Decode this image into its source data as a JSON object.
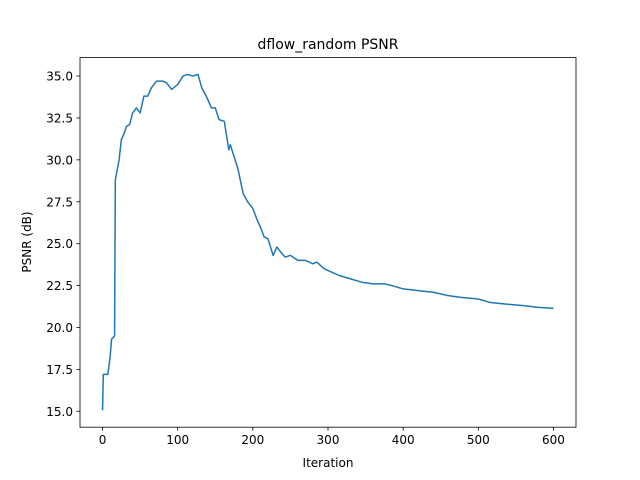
{
  "chart_data": {
    "type": "line",
    "title": "dflow_random PSNR",
    "x_label": "Iteration",
    "y_label": "PSNR (dB)",
    "x": [
      0,
      1,
      7,
      10,
      12,
      16,
      17,
      22,
      25,
      28,
      32,
      36,
      40,
      45,
      50,
      55,
      60,
      65,
      72,
      80,
      85,
      92,
      100,
      107,
      113,
      120,
      127,
      132,
      138,
      145,
      150,
      155,
      162,
      168,
      170,
      175,
      180,
      187,
      193,
      200,
      205,
      210,
      215,
      220,
      227,
      232,
      237,
      243,
      250,
      260,
      270,
      280,
      285,
      295,
      305,
      315,
      330,
      345,
      360,
      375,
      385,
      400,
      420,
      440,
      460,
      475,
      500,
      515,
      535,
      560,
      580,
      600
    ],
    "series": [
      {
        "name": "PSNR",
        "color": "#1f77b4",
        "values": [
          15.06,
          17.2,
          17.2,
          18.2,
          19.3,
          19.5,
          28.8,
          30.0,
          31.2,
          31.5,
          32.0,
          32.1,
          32.8,
          33.1,
          32.8,
          33.8,
          33.8,
          34.3,
          34.7,
          34.7,
          34.6,
          34.2,
          34.5,
          35.0,
          35.1,
          35.0,
          35.1,
          34.3,
          33.8,
          33.1,
          33.1,
          32.4,
          32.3,
          30.6,
          30.9,
          30.2,
          29.5,
          28.0,
          27.5,
          27.1,
          26.5,
          26.0,
          25.4,
          25.3,
          24.3,
          24.8,
          24.5,
          24.2,
          24.3,
          24.0,
          24.0,
          23.8,
          23.9,
          23.5,
          23.3,
          23.1,
          22.9,
          22.7,
          22.6,
          22.6,
          22.5,
          22.3,
          22.2,
          22.1,
          21.9,
          21.8,
          21.7,
          21.5,
          21.4,
          21.3,
          21.2,
          21.15
        ]
      }
    ],
    "xlim": [
      -30,
      630
    ],
    "ylim": [
      14.05,
      36.1
    ],
    "xticks": [
      0,
      100,
      200,
      300,
      400,
      500,
      600
    ],
    "yticks": [
      {
        "value": 15,
        "label": "15.0"
      },
      17.5,
      {
        "value": 20,
        "label": "20.0"
      },
      22.5,
      {
        "value": 25,
        "label": "25.0"
      },
      27.5,
      {
        "value": 30,
        "label": "30.0"
      },
      32.5,
      {
        "value": 35,
        "label": "35.0"
      }
    ],
    "grid": false
  }
}
